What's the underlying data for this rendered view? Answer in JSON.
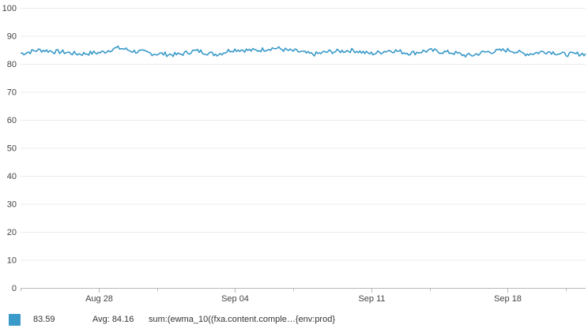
{
  "chart_data": {
    "type": "line",
    "title": "",
    "xlabel": "",
    "ylabel": "",
    "ylim": [
      0,
      100
    ],
    "yticks": [
      0,
      10,
      20,
      30,
      40,
      50,
      60,
      70,
      80,
      90,
      100
    ],
    "xlim": [
      "2017-08-24",
      "2017-09-22"
    ],
    "xticks": [
      {
        "label": "Aug 28",
        "date": "2017-08-28"
      },
      {
        "label": "Sep 04",
        "date": "2017-09-04"
      },
      {
        "label": "Sep 11",
        "date": "2017-09-11"
      },
      {
        "label": "Sep 18",
        "date": "2017-09-18"
      }
    ],
    "minor_tick_dates": [
      "2017-08-24",
      "2017-08-31",
      "2017-09-07",
      "2017-09-14",
      "2017-09-21"
    ],
    "grid": true,
    "legend_position": "bottom",
    "series": [
      {
        "color": "#3a9ac9",
        "x": [
          "2017-08-24",
          "2017-08-25",
          "2017-08-26",
          "2017-08-27",
          "2017-08-28",
          "2017-08-29",
          "2017-08-30",
          "2017-08-31",
          "2017-09-01",
          "2017-09-02",
          "2017-09-03",
          "2017-09-04",
          "2017-09-05",
          "2017-09-06",
          "2017-09-07",
          "2017-09-08",
          "2017-09-09",
          "2017-09-10",
          "2017-09-11",
          "2017-09-12",
          "2017-09-13",
          "2017-09-14",
          "2017-09-15",
          "2017-09-16",
          "2017-09-17",
          "2017-09-18",
          "2017-09-19",
          "2017-09-20",
          "2017-09-21",
          "2017-09-22"
        ],
        "values": [
          83.8,
          84.9,
          84.3,
          83.6,
          84.0,
          85.6,
          84.4,
          83.6,
          83.3,
          84.6,
          83.5,
          85.1,
          84.8,
          85.6,
          84.6,
          83.5,
          84.4,
          84.8,
          83.7,
          84.8,
          83.9,
          84.7,
          84.1,
          83.0,
          84.3,
          84.9,
          83.6,
          84.4,
          83.4,
          83.6
        ]
      }
    ]
  },
  "legend": {
    "swatch_color": "#3a9ac9",
    "current_value": "83.59",
    "avg_label": "Avg:",
    "avg_value": "84.16",
    "query": "sum:(ewma_10((fxa.content.comple…{env:prod}"
  }
}
